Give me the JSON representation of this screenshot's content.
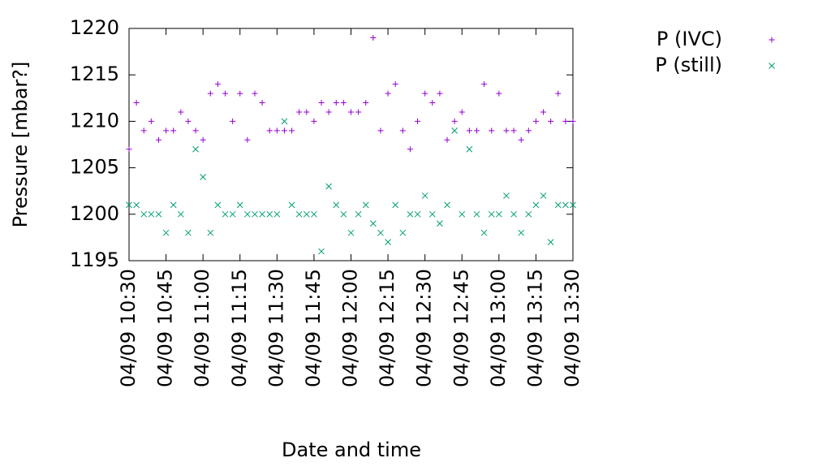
{
  "chart_data": {
    "type": "scatter",
    "xlabel": "Date and time",
    "ylabel": "Pressure [mbar?]",
    "x": [
      "04/09 10:30",
      "04/09 10:33",
      "04/09 10:36",
      "04/09 10:39",
      "04/09 10:42",
      "04/09 10:45",
      "04/09 10:48",
      "04/09 10:51",
      "04/09 10:54",
      "04/09 10:57",
      "04/09 11:00",
      "04/09 11:03",
      "04/09 11:06",
      "04/09 11:09",
      "04/09 11:12",
      "04/09 11:15",
      "04/09 11:18",
      "04/09 11:21",
      "04/09 11:24",
      "04/09 11:27",
      "04/09 11:30",
      "04/09 11:33",
      "04/09 11:36",
      "04/09 11:39",
      "04/09 11:42",
      "04/09 11:45",
      "04/09 11:48",
      "04/09 11:51",
      "04/09 11:54",
      "04/09 11:57",
      "04/09 12:00",
      "04/09 12:03",
      "04/09 12:06",
      "04/09 12:09",
      "04/09 12:12",
      "04/09 12:15",
      "04/09 12:18",
      "04/09 12:21",
      "04/09 12:24",
      "04/09 12:27",
      "04/09 12:30",
      "04/09 12:33",
      "04/09 12:36",
      "04/09 12:39",
      "04/09 12:42",
      "04/09 12:45",
      "04/09 12:48",
      "04/09 12:51",
      "04/09 12:54",
      "04/09 12:57",
      "04/09 13:00",
      "04/09 13:03",
      "04/09 13:06",
      "04/09 13:09",
      "04/09 13:12",
      "04/09 13:15",
      "04/09 13:18",
      "04/09 13:21",
      "04/09 13:24",
      "04/09 13:27",
      "04/09 13:30"
    ],
    "series": [
      {
        "name": "P (IVC)",
        "color": "#9400d3",
        "marker": "+",
        "values": [
          1207,
          1212,
          1209,
          1210,
          1208,
          1209,
          1209,
          1211,
          1210,
          1209,
          1208,
          1213,
          1214,
          1213,
          1210,
          1213,
          1208,
          1213,
          1212,
          1209,
          1209,
          1209,
          1209,
          1211,
          1211,
          1210,
          1212,
          1211,
          1212,
          1212,
          1211,
          1211,
          1212,
          1219,
          1209,
          1213,
          1214,
          1209,
          1207,
          1210,
          1213,
          1212,
          1213,
          1208,
          1210,
          1211,
          1209,
          1209,
          1214,
          1209,
          1213,
          1209,
          1209,
          1208,
          1209,
          1210,
          1211,
          1210,
          1213,
          1210,
          1210
        ]
      },
      {
        "name": "P (still)",
        "color": "#009e73",
        "marker": "x",
        "values": [
          1201,
          1201,
          1200,
          1200,
          1200,
          1198,
          1201,
          1200,
          1198,
          1207,
          1204,
          1198,
          1201,
          1200,
          1200,
          1201,
          1200,
          1200,
          1200,
          1200,
          1200,
          1210,
          1201,
          1200,
          1200,
          1200,
          1196,
          1203,
          1201,
          1200,
          1198,
          1200,
          1201,
          1199,
          1198,
          1197,
          1201,
          1198,
          1200,
          1200,
          1202,
          1200,
          1199,
          1201,
          1209,
          1200,
          1207,
          1200,
          1198,
          1200,
          1200,
          1202,
          1200,
          1198,
          1200,
          1201,
          1202,
          1197,
          1201,
          1201,
          1201
        ]
      }
    ],
    "xlim": [
      "04/09 10:30",
      "04/09 13:30"
    ],
    "xticks": [
      "04/09 10:30",
      "04/09 10:45",
      "04/09 11:00",
      "04/09 11:15",
      "04/09 11:30",
      "04/09 11:45",
      "04/09 12:00",
      "04/09 12:15",
      "04/09 12:30",
      "04/09 12:45",
      "04/09 13:00",
      "04/09 13:15",
      "04/09 13:30"
    ],
    "ylim": [
      1195,
      1220
    ],
    "yticks": [
      1195,
      1200,
      1205,
      1210,
      1215,
      1220
    ],
    "legend": "outside-top-right"
  }
}
